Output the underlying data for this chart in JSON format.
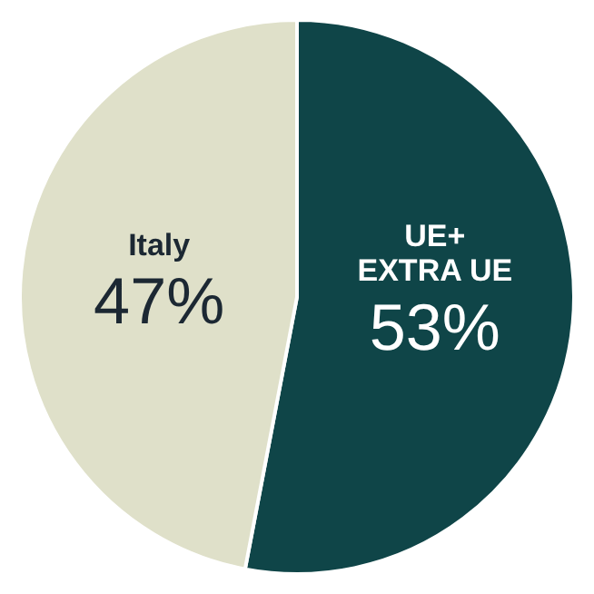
{
  "chart_data": {
    "type": "pie",
    "categories": [
      "UE+\nEXTRA UE",
      "Italy"
    ],
    "values": [
      53,
      47
    ],
    "colors": [
      "#0f4548",
      "#dfe0c9"
    ],
    "value_labels": [
      "53%",
      "47%"
    ],
    "legend": false
  }
}
